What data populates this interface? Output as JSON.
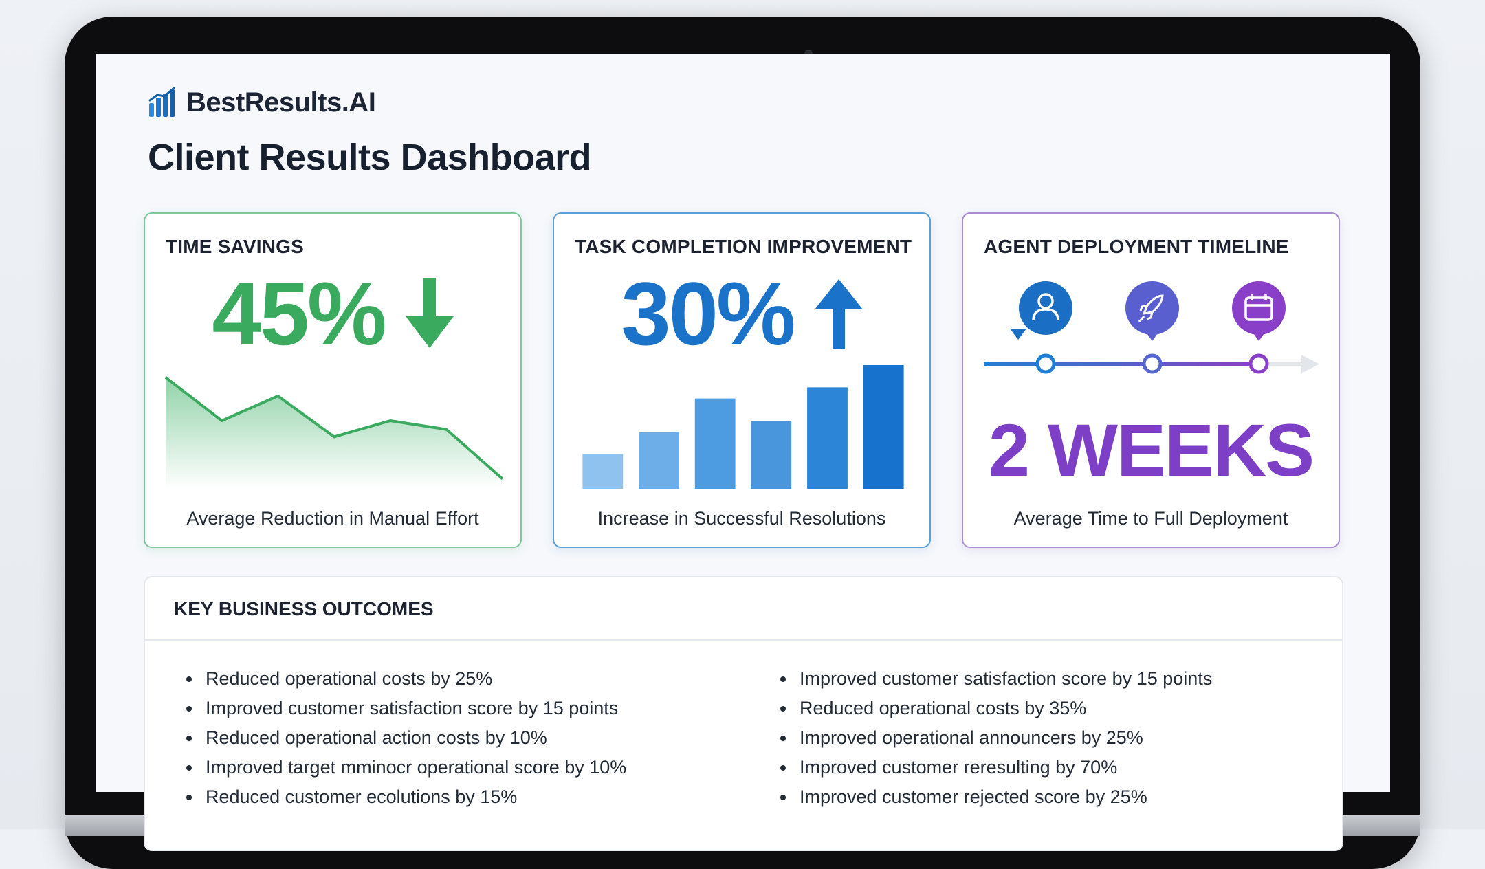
{
  "brand": {
    "name": "BestResults.AI",
    "icon": "bar-chart-logo-icon",
    "color": "#1d6fc4"
  },
  "page": {
    "title": "Client Results Dashboard"
  },
  "cards": {
    "time_savings": {
      "title": "TIME SAVINGS",
      "value": "45%",
      "trend_icon": "arrow-down-icon",
      "caption": "Average Reduction in Manual Effort",
      "accent": "#3aaa5f"
    },
    "task_completion": {
      "title": "TASK COMPLETION IMPROVEMENT",
      "value": "30%",
      "trend_icon": "arrow-up-icon",
      "caption": "Increase in Successful Resolutions",
      "accent": "#1a72c9"
    },
    "deployment": {
      "title": "AGENT DEPLOYMENT TIMELINE",
      "value": "2 WEEKS",
      "caption": "Average Time to Full Deployment",
      "accent": "#7e3fc7",
      "steps": [
        {
          "icon": "user-icon",
          "color": "#1a6fc4"
        },
        {
          "icon": "rocket-icon",
          "color": "#5a5fd0"
        },
        {
          "icon": "calendar-icon",
          "color": "#8a3fc8"
        }
      ]
    }
  },
  "chart_data": [
    {
      "type": "area",
      "x": [
        0,
        1,
        2,
        3,
        4,
        5,
        6
      ],
      "values": [
        90,
        55,
        75,
        42,
        55,
        48,
        8
      ],
      "title": "",
      "xlabel": "",
      "ylabel": "",
      "ylim": [
        0,
        100
      ]
    },
    {
      "type": "bar",
      "categories": [
        "1",
        "2",
        "3",
        "4",
        "5",
        "6"
      ],
      "values": [
        28,
        46,
        73,
        55,
        82,
        100
      ],
      "title": "",
      "xlabel": "",
      "ylabel": "",
      "ylim": [
        0,
        100
      ]
    }
  ],
  "outcomes": {
    "title": "KEY BUSINESS OUTCOMES",
    "left": [
      "Reduced operational costs by 25%",
      "Improved customer satisfaction score by 15 points",
      "Reduced operational action costs by 10%",
      "Improved target mminocr operational score by 10%",
      "Reduced customer ecolutions by 15%"
    ],
    "right": [
      "Improved customer satisfaction score by 15 points",
      "Reduced operational costs by 35%",
      "Improved operational announcers by 25%",
      "Improved customer reresulting by 70%",
      "Improved customer rejected score by 25%"
    ]
  }
}
